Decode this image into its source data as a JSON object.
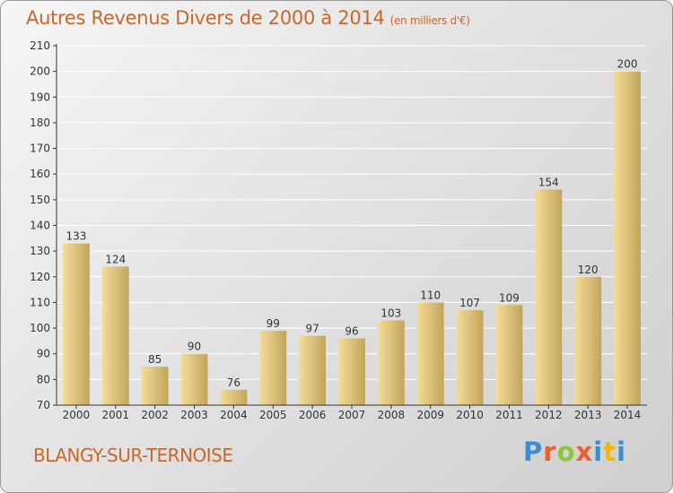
{
  "header": {
    "title": "Autres Revenus Divers de 2000 à 2014",
    "unit_note": "(en milliers d'€)"
  },
  "footer": {
    "commune": "BLANGY-SUR-TERNOISE",
    "logo_text": "Proxiti"
  },
  "colors": {
    "title": "#c8682c",
    "bar_light": "#f4dc98",
    "bar_dark": "#c2a55b",
    "axis": "#333333",
    "grid": "#ffffff"
  },
  "logo_letter_colors": [
    "#3a8dd0",
    "#e8612c",
    "#8cc63f",
    "#e8612c",
    "#3a8dd0",
    "#f2b705",
    "#3a8dd0"
  ],
  "chart_data": {
    "type": "bar",
    "categories": [
      "2000",
      "2001",
      "2002",
      "2003",
      "2004",
      "2005",
      "2006",
      "2007",
      "2008",
      "2009",
      "2010",
      "2011",
      "2012",
      "2013",
      "2014"
    ],
    "values": [
      133,
      124,
      85,
      90,
      76,
      99,
      97,
      96,
      103,
      110,
      107,
      109,
      154,
      120,
      200
    ],
    "ylim": [
      70,
      210
    ],
    "yticks": [
      70,
      80,
      90,
      100,
      110,
      120,
      130,
      140,
      150,
      160,
      170,
      180,
      190,
      200,
      210
    ],
    "grid": true
  }
}
